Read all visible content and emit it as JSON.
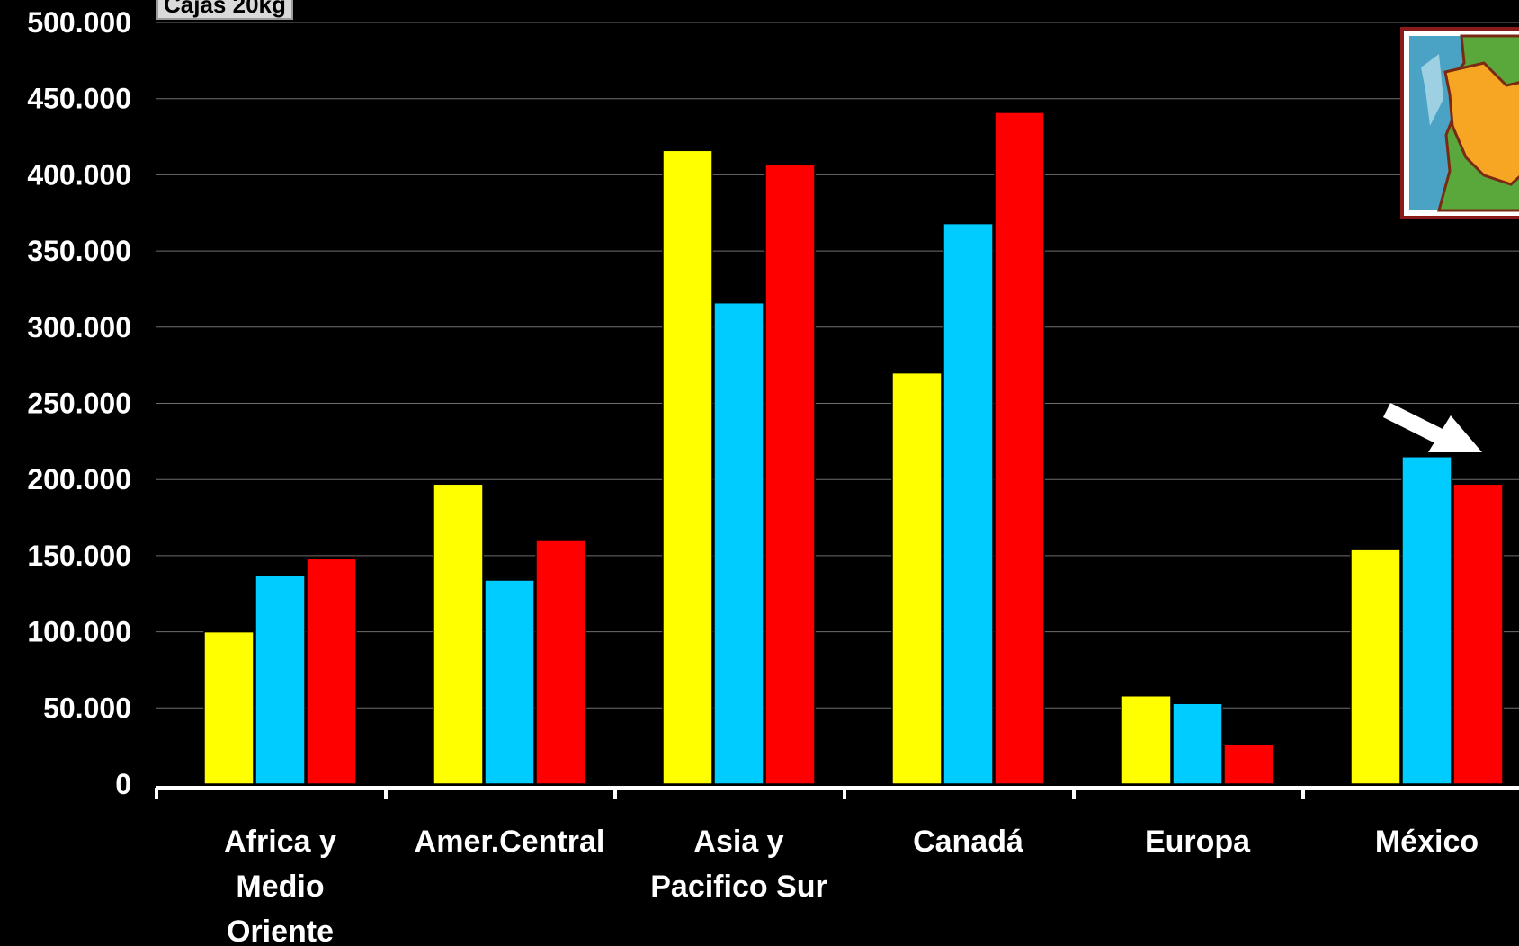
{
  "unit_label": "Cajas 20kg",
  "colors": {
    "background": "#000000",
    "gridline": "#6e6e6e",
    "axis": "#ffffff",
    "series": [
      "#ffff00",
      "#00ccff",
      "#ff0000"
    ]
  },
  "chart_data": {
    "type": "bar",
    "title": "",
    "xlabel": "",
    "ylabel": "",
    "ylim": [
      0,
      500000
    ],
    "yticks": [
      {
        "value": 0,
        "label": "0"
      },
      {
        "value": 50000,
        "label": "50.000"
      },
      {
        "value": 100000,
        "label": "100.000"
      },
      {
        "value": 150000,
        "label": "150.000"
      },
      {
        "value": 200000,
        "label": "200.000"
      },
      {
        "value": 250000,
        "label": "250.000"
      },
      {
        "value": 300000,
        "label": "300.000"
      },
      {
        "value": 350000,
        "label": "350.000"
      },
      {
        "value": 400000,
        "label": "400.000"
      },
      {
        "value": 450000,
        "label": "450.000"
      },
      {
        "value": 500000,
        "label": "500.000"
      }
    ],
    "grid": true,
    "legend": "none",
    "categories": [
      "Africa y Medio Oriente",
      "Amer.Central",
      "Asia y Pacifico Sur",
      "Canadá",
      "Europa",
      "México"
    ],
    "category_lines": [
      [
        "Africa y",
        "Medio",
        "Oriente"
      ],
      [
        "Amer.Central"
      ],
      [
        "Asia y",
        "Pacifico Sur"
      ],
      [
        "Canadá"
      ],
      [
        "Europa"
      ],
      [
        "México"
      ]
    ],
    "series": [
      {
        "values": [
          100000,
          197000,
          416000,
          270000,
          58000,
          154000
        ]
      },
      {
        "values": [
          137000,
          134000,
          316000,
          368000,
          53000,
          215000
        ]
      },
      {
        "values": [
          148000,
          160000,
          407000,
          441000,
          26000,
          197000
        ]
      }
    ]
  },
  "decorations": {
    "inset_image": "map-thumbnail",
    "arrow": "pointer-arrow pointing to México"
  }
}
